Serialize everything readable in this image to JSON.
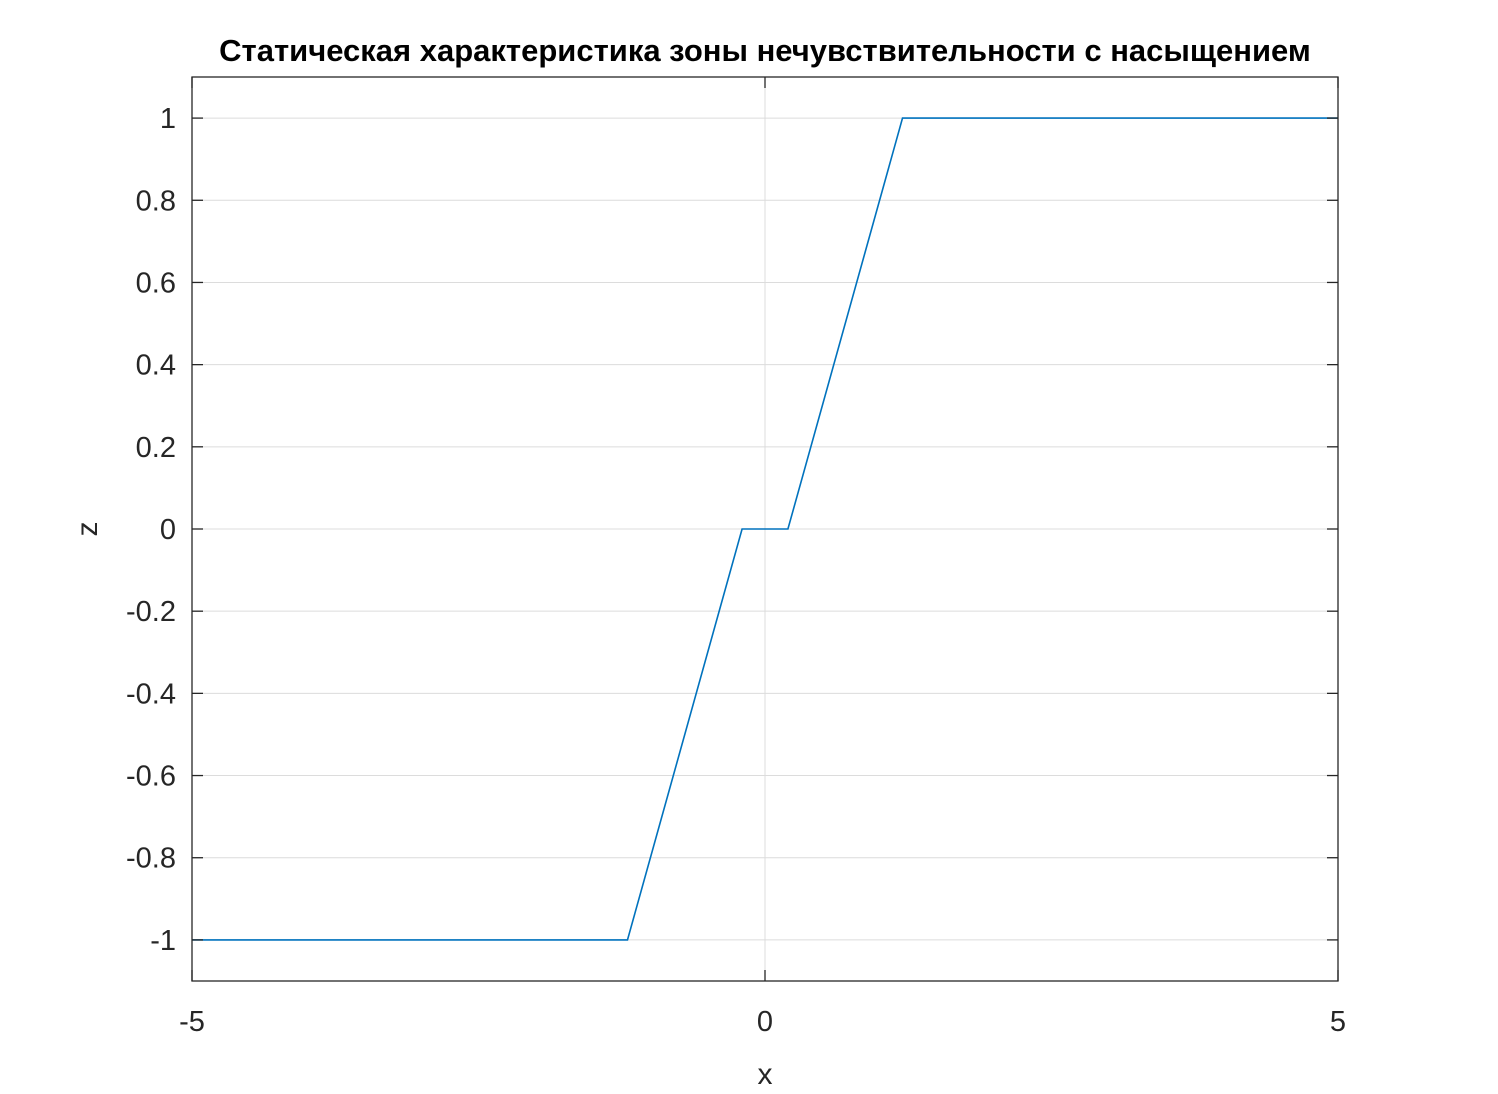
{
  "chart_data": {
    "type": "line",
    "title": "Статическая характеристика зоны нечувствительности с насыщением",
    "xlabel": "x",
    "ylabel": "z",
    "xlim": [
      -5,
      5
    ],
    "ylim": [
      -1.1,
      1.1
    ],
    "xticks": [
      -5,
      0,
      5
    ],
    "xtick_labels": [
      "-5",
      "0",
      "5"
    ],
    "yticks": [
      -1,
      -0.8,
      -0.6,
      -0.4,
      -0.2,
      0,
      0.2,
      0.4,
      0.6,
      0.8,
      1
    ],
    "ytick_labels": [
      "-1",
      "-0.8",
      "-0.6",
      "-0.4",
      "-0.2",
      "0",
      "0.2",
      "0.4",
      "0.6",
      "0.8",
      "1"
    ],
    "grid": true,
    "series": [
      {
        "color": "#0072bd",
        "x": [
          -5,
          -1.2,
          -0.2,
          0.2,
          1.2,
          5
        ],
        "y": [
          -1,
          -1,
          0,
          0,
          1,
          1
        ]
      }
    ]
  }
}
